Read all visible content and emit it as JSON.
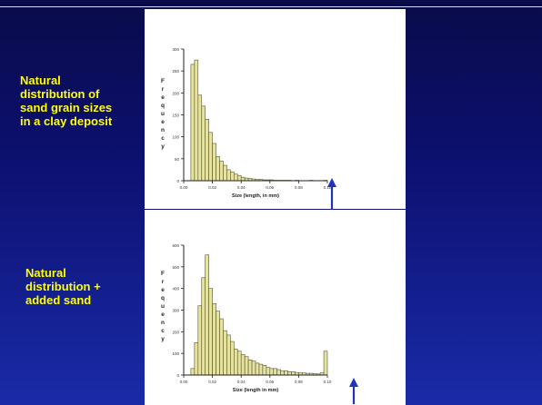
{
  "captions": [
    "Natural\ndistribution of\nsand grain sizes\nin a clay deposit",
    "Natural\ndistribution +\nadded sand"
  ],
  "colors": {
    "bar_fill": "#e6e2a0",
    "bar_stroke": "#555533",
    "caption": "#ffff00",
    "arrow": "#2233bb"
  },
  "chart_data": [
    {
      "type": "bar",
      "title": "",
      "xlabel": "Size (length, in mm)",
      "ylabel": "Frequency",
      "xlim": [
        0,
        0.1
      ],
      "ylim": [
        0,
        300
      ],
      "x_ticks": [
        "0.00",
        "0.02",
        "0.04",
        "0.06",
        "0.08",
        "0.10"
      ],
      "y_ticks": [
        "0",
        "50",
        "100",
        "150",
        "200",
        "250",
        "300"
      ],
      "bin_width": 0.0025,
      "values": [
        0,
        0,
        265,
        275,
        195,
        170,
        140,
        110,
        85,
        55,
        45,
        35,
        25,
        20,
        15,
        12,
        8,
        6,
        5,
        4,
        3,
        3,
        2,
        2,
        2,
        1,
        1,
        1,
        1,
        1,
        0,
        1,
        0,
        0,
        0,
        1,
        0,
        0,
        0,
        1
      ],
      "annotation": "arrow at 0.10"
    },
    {
      "type": "bar",
      "title": "",
      "xlabel": "Size (length in mm)",
      "ylabel": "Frequency",
      "xlim": [
        0,
        0.1
      ],
      "ylim": [
        0,
        600
      ],
      "x_ticks": [
        "0.00",
        "0.02",
        "0.04",
        "0.06",
        "0.08",
        "0.10"
      ],
      "y_ticks": [
        "0",
        "100",
        "200",
        "300",
        "400",
        "500",
        "600"
      ],
      "bin_width": 0.0025,
      "values": [
        0,
        0,
        30,
        150,
        320,
        450,
        555,
        400,
        330,
        295,
        260,
        205,
        185,
        155,
        120,
        110,
        95,
        85,
        70,
        65,
        55,
        50,
        45,
        35,
        30,
        30,
        25,
        20,
        20,
        15,
        15,
        12,
        10,
        10,
        8,
        8,
        6,
        5,
        10,
        110
      ],
      "annotation": "arrow at 0.10"
    }
  ]
}
